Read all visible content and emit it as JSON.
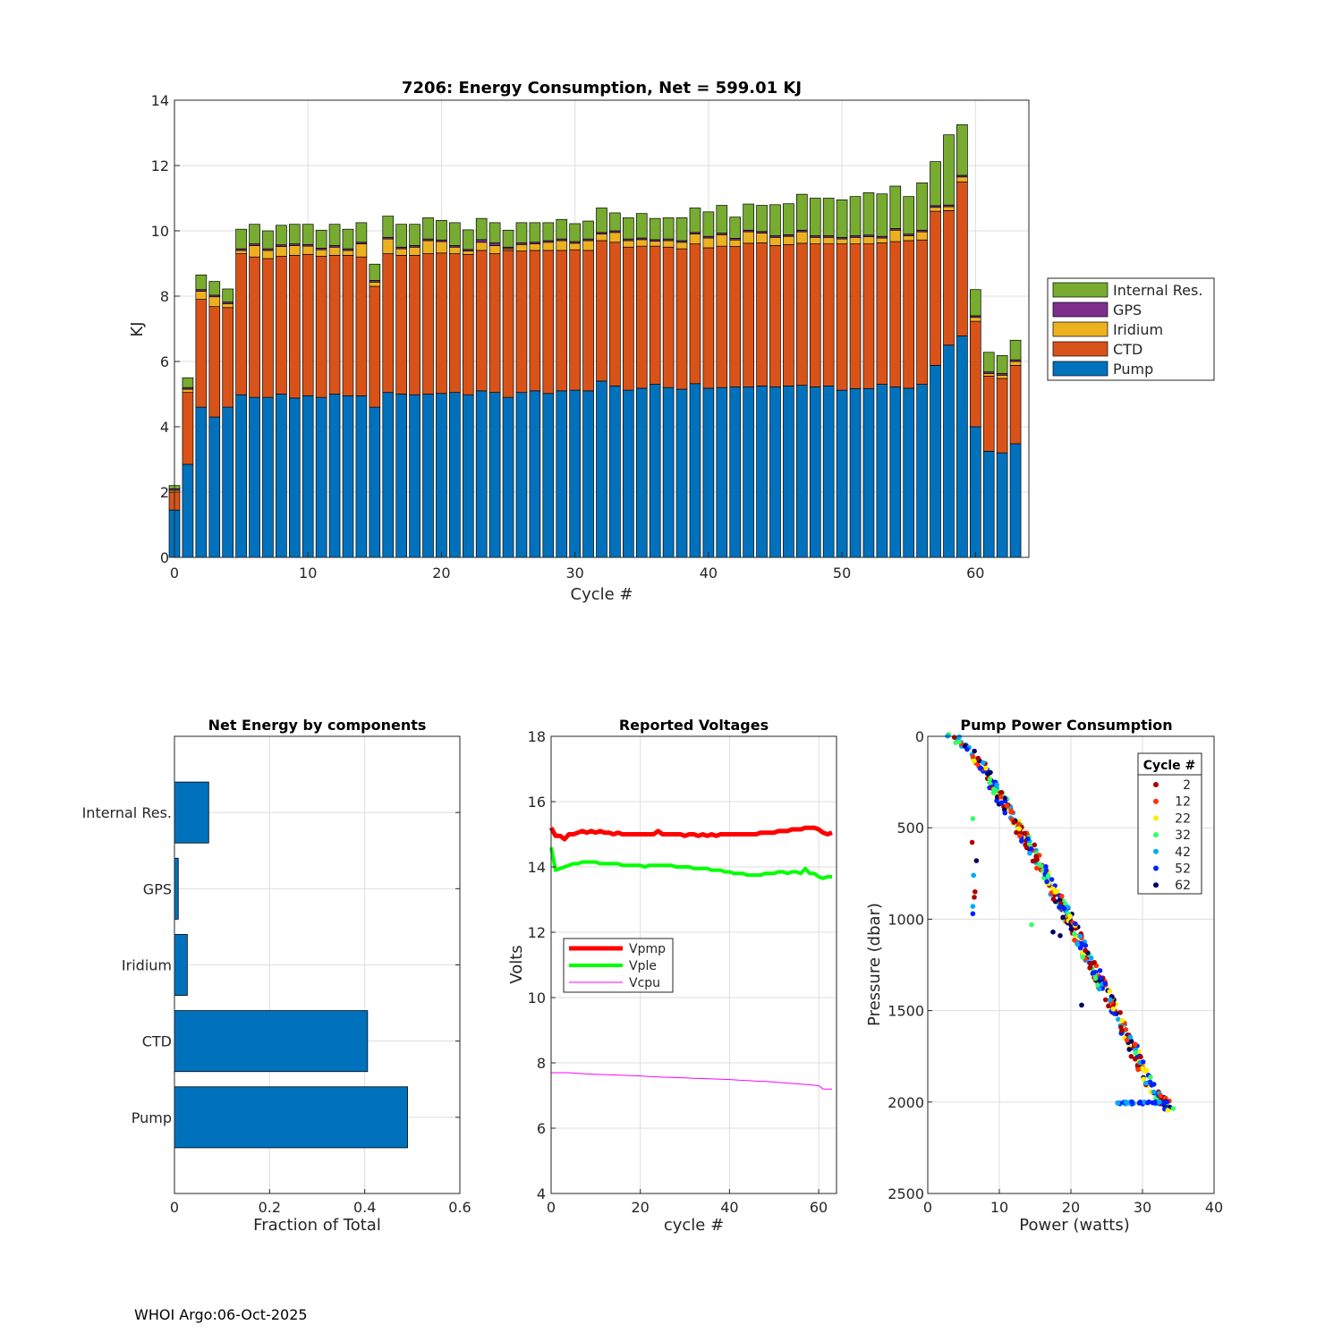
{
  "footer": "WHOI Argo:06-Oct-2025",
  "colors": {
    "pump": "#0072bd",
    "ctd": "#d95319",
    "iridium": "#edb120",
    "gps": "#7e2f8e",
    "internal": "#77ac30",
    "vpmp": "#ff0000",
    "vple": "#00ff00",
    "vcpu": "#ff00ff"
  },
  "chart_data": [
    {
      "id": "energy",
      "type": "bar",
      "stacked": true,
      "title": "7206: Energy Consumption,  Net = 599.01 KJ",
      "xlabel": "Cycle #",
      "ylabel": "KJ",
      "xlim": [
        0,
        64
      ],
      "ylim": [
        0,
        14
      ],
      "xticks": [
        0,
        10,
        20,
        30,
        40,
        50,
        60
      ],
      "yticks": [
        0,
        2,
        4,
        6,
        8,
        10,
        12,
        14
      ],
      "grid": true,
      "legend_position": "outside-right",
      "legend": [
        "Internal Res.",
        "GPS",
        "Iridium",
        "CTD",
        "Pump"
      ],
      "cycles": [
        0,
        1,
        2,
        3,
        4,
        5,
        6,
        7,
        8,
        9,
        10,
        11,
        12,
        13,
        14,
        15,
        16,
        17,
        18,
        19,
        20,
        21,
        22,
        23,
        24,
        25,
        26,
        27,
        28,
        29,
        30,
        31,
        32,
        33,
        34,
        35,
        36,
        37,
        38,
        39,
        40,
        41,
        42,
        43,
        44,
        45,
        46,
        47,
        48,
        49,
        50,
        51,
        52,
        53,
        54,
        55,
        56,
        57,
        58,
        59,
        60,
        61,
        62,
        63
      ],
      "series": [
        {
          "name": "Pump",
          "color_key": "pump",
          "values": [
            1.45,
            2.85,
            4.6,
            4.3,
            4.6,
            4.98,
            4.9,
            4.9,
            5.0,
            4.88,
            4.95,
            4.9,
            5.0,
            4.95,
            4.95,
            4.6,
            5.05,
            5.0,
            4.98,
            5.0,
            5.02,
            5.05,
            4.98,
            5.1,
            5.05,
            4.9,
            5.05,
            5.1,
            5.02,
            5.1,
            5.12,
            5.1,
            5.4,
            5.25,
            5.12,
            5.18,
            5.3,
            5.2,
            5.15,
            5.32,
            5.18,
            5.2,
            5.22,
            5.22,
            5.25,
            5.22,
            5.25,
            5.27,
            5.22,
            5.25,
            5.12,
            5.17,
            5.17,
            5.3,
            5.22,
            5.18,
            5.3,
            5.88,
            6.5,
            6.78,
            4.0,
            3.25,
            3.2,
            3.48
          ]
        },
        {
          "name": "CTD",
          "color_key": "ctd",
          "values": [
            0.55,
            2.2,
            3.3,
            3.38,
            3.05,
            4.32,
            4.3,
            4.25,
            4.22,
            4.37,
            4.33,
            4.32,
            4.25,
            4.3,
            4.25,
            3.7,
            4.25,
            4.25,
            4.27,
            4.3,
            4.3,
            4.25,
            4.3,
            4.3,
            4.25,
            4.5,
            4.33,
            4.3,
            4.38,
            4.3,
            4.3,
            4.3,
            4.3,
            4.4,
            4.38,
            4.35,
            4.23,
            4.3,
            4.3,
            4.28,
            4.3,
            4.33,
            4.3,
            4.4,
            4.38,
            4.33,
            4.33,
            4.35,
            4.38,
            4.35,
            4.48,
            4.43,
            4.43,
            4.33,
            4.45,
            4.52,
            4.42,
            4.72,
            4.12,
            4.72,
            3.23,
            2.3,
            2.28,
            2.4
          ]
        },
        {
          "name": "Iridium",
          "color_key": "iridium",
          "values": [
            0.05,
            0.1,
            0.25,
            0.3,
            0.12,
            0.1,
            0.35,
            0.25,
            0.3,
            0.3,
            0.25,
            0.2,
            0.25,
            0.15,
            0.4,
            0.13,
            0.45,
            0.2,
            0.25,
            0.4,
            0.35,
            0.2,
            0.1,
            0.25,
            0.25,
            0.05,
            0.2,
            0.2,
            0.25,
            0.3,
            0.2,
            0.3,
            0.2,
            0.3,
            0.2,
            0.2,
            0.15,
            0.2,
            0.2,
            0.3,
            0.3,
            0.35,
            0.2,
            0.35,
            0.3,
            0.25,
            0.25,
            0.35,
            0.2,
            0.2,
            0.15,
            0.2,
            0.22,
            0.15,
            0.35,
            0.15,
            0.25,
            0.12,
            0.12,
            0.15,
            0.12,
            0.08,
            0.1,
            0.12
          ]
        },
        {
          "name": "GPS",
          "color_key": "gps",
          "values": [
            0.05,
            0.05,
            0.05,
            0.05,
            0.05,
            0.05,
            0.05,
            0.05,
            0.05,
            0.05,
            0.05,
            0.05,
            0.05,
            0.05,
            0.05,
            0.05,
            0.05,
            0.05,
            0.05,
            0.05,
            0.05,
            0.05,
            0.05,
            0.08,
            0.08,
            0.05,
            0.05,
            0.05,
            0.05,
            0.05,
            0.05,
            0.05,
            0.05,
            0.05,
            0.05,
            0.05,
            0.05,
            0.05,
            0.05,
            0.05,
            0.05,
            0.05,
            0.05,
            0.05,
            0.05,
            0.05,
            0.05,
            0.05,
            0.05,
            0.05,
            0.05,
            0.05,
            0.05,
            0.05,
            0.05,
            0.05,
            0.05,
            0.05,
            0.05,
            0.05,
            0.05,
            0.05,
            0.05,
            0.05
          ]
        },
        {
          "name": "Internal Res.",
          "color_key": "internal",
          "values": [
            0.1,
            0.3,
            0.45,
            0.42,
            0.4,
            0.6,
            0.6,
            0.55,
            0.6,
            0.6,
            0.62,
            0.55,
            0.65,
            0.6,
            0.6,
            0.5,
            0.65,
            0.7,
            0.65,
            0.65,
            0.6,
            0.7,
            0.6,
            0.65,
            0.62,
            0.52,
            0.62,
            0.6,
            0.55,
            0.6,
            0.55,
            0.55,
            0.75,
            0.55,
            0.65,
            0.75,
            0.65,
            0.65,
            0.7,
            0.75,
            0.75,
            0.85,
            0.65,
            0.8,
            0.8,
            0.95,
            0.95,
            1.1,
            1.15,
            1.15,
            1.15,
            1.2,
            1.3,
            1.3,
            1.3,
            1.15,
            1.45,
            1.35,
            2.15,
            1.55,
            0.8,
            0.6,
            0.55,
            0.6
          ]
        }
      ]
    },
    {
      "id": "components",
      "type": "bar",
      "orientation": "horizontal",
      "title": "Net Energy by components",
      "xlabel": "Fraction of Total",
      "xlim": [
        0,
        0.6
      ],
      "xticks": [
        0,
        0.2,
        0.4,
        0.6
      ],
      "xtick_labels": [
        "0",
        "0.2",
        "0.4",
        "0.6"
      ],
      "grid": true,
      "categories": [
        "Internal Res.",
        "GPS",
        "Iridium",
        "CTD",
        "Pump"
      ],
      "values": [
        0.072,
        0.008,
        0.027,
        0.406,
        0.49
      ],
      "color_key": "pump"
    },
    {
      "id": "voltages",
      "type": "line",
      "title": "Reported Voltages",
      "xlabel": "cycle #",
      "ylabel": "Volts",
      "xlim": [
        0,
        64
      ],
      "ylim": [
        4,
        18
      ],
      "xticks": [
        0,
        20,
        40,
        60
      ],
      "yticks": [
        4,
        6,
        8,
        10,
        12,
        14,
        16,
        18
      ],
      "grid": true,
      "legend_position": "center-left",
      "series": [
        {
          "name": "Vpmp",
          "color_key": "vpmp",
          "width": 5,
          "x": [
            0,
            1,
            2,
            3,
            4,
            5,
            6,
            7,
            8,
            9,
            10,
            11,
            12,
            13,
            14,
            15,
            16,
            17,
            18,
            19,
            20,
            21,
            22,
            23,
            24,
            25,
            26,
            27,
            28,
            29,
            30,
            31,
            32,
            33,
            34,
            35,
            36,
            37,
            38,
            39,
            40,
            41,
            42,
            43,
            44,
            45,
            46,
            47,
            48,
            49,
            50,
            51,
            52,
            53,
            54,
            55,
            56,
            57,
            58,
            59,
            60,
            61,
            62,
            63
          ],
          "y": [
            15.2,
            14.95,
            14.95,
            14.85,
            15.0,
            15.0,
            15.05,
            15.1,
            15.05,
            15.1,
            15.05,
            15.1,
            15.05,
            15.05,
            15.0,
            15.05,
            15.0,
            15.0,
            15.0,
            15.0,
            15.0,
            15.0,
            15.0,
            15.0,
            15.1,
            15.0,
            15.0,
            15.0,
            15.0,
            15.0,
            14.95,
            15.0,
            15.0,
            14.95,
            15.0,
            14.95,
            15.0,
            14.95,
            15.0,
            15.0,
            15.0,
            15.0,
            15.0,
            15.0,
            15.0,
            15.0,
            15.0,
            15.05,
            15.05,
            15.05,
            15.05,
            15.1,
            15.1,
            15.1,
            15.15,
            15.15,
            15.15,
            15.2,
            15.2,
            15.2,
            15.15,
            15.05,
            15.0,
            15.05
          ]
        },
        {
          "name": "Vple",
          "color_key": "vple",
          "width": 4,
          "x": [
            0,
            1,
            2,
            3,
            4,
            5,
            6,
            7,
            8,
            9,
            10,
            11,
            12,
            13,
            14,
            15,
            16,
            17,
            18,
            19,
            20,
            21,
            22,
            23,
            24,
            25,
            26,
            27,
            28,
            29,
            30,
            31,
            32,
            33,
            34,
            35,
            36,
            37,
            38,
            39,
            40,
            41,
            42,
            43,
            44,
            45,
            46,
            47,
            48,
            49,
            50,
            51,
            52,
            53,
            54,
            55,
            56,
            57,
            58,
            59,
            60,
            61,
            62,
            63
          ],
          "y": [
            14.6,
            13.9,
            13.95,
            14.0,
            14.05,
            14.1,
            14.1,
            14.15,
            14.15,
            14.15,
            14.15,
            14.1,
            14.1,
            14.1,
            14.1,
            14.1,
            14.05,
            14.05,
            14.05,
            14.05,
            14.05,
            14.0,
            14.05,
            14.05,
            14.05,
            14.05,
            14.05,
            14.05,
            14.0,
            14.0,
            14.0,
            14.0,
            13.95,
            13.95,
            13.95,
            13.95,
            13.9,
            13.9,
            13.9,
            13.85,
            13.85,
            13.8,
            13.8,
            13.8,
            13.75,
            13.75,
            13.75,
            13.75,
            13.8,
            13.8,
            13.8,
            13.85,
            13.85,
            13.8,
            13.85,
            13.85,
            13.8,
            13.95,
            13.8,
            13.8,
            13.7,
            13.65,
            13.7,
            13.7
          ]
        },
        {
          "name": "Vcpu",
          "color_key": "vcpu",
          "width": 1,
          "x": [
            0,
            2,
            4,
            6,
            8,
            10,
            12,
            14,
            16,
            18,
            20,
            22,
            24,
            26,
            28,
            30,
            32,
            34,
            36,
            38,
            40,
            42,
            44,
            46,
            48,
            50,
            52,
            54,
            56,
            58,
            60,
            61,
            62,
            63
          ],
          "y": [
            7.7,
            7.7,
            7.7,
            7.68,
            7.66,
            7.65,
            7.64,
            7.63,
            7.62,
            7.61,
            7.6,
            7.58,
            7.57,
            7.56,
            7.55,
            7.54,
            7.53,
            7.52,
            7.51,
            7.5,
            7.49,
            7.47,
            7.46,
            7.44,
            7.43,
            7.41,
            7.39,
            7.37,
            7.35,
            7.33,
            7.3,
            7.2,
            7.2,
            7.2
          ]
        }
      ]
    },
    {
      "id": "pump_power",
      "type": "scatter",
      "title": "Pump Power Consumption",
      "xlabel": "Power (watts)",
      "ylabel": "Pressure (dbar)",
      "xlim": [
        0,
        40
      ],
      "ylim": [
        2500,
        0
      ],
      "y_reversed": true,
      "xticks": [
        0,
        10,
        20,
        30,
        40
      ],
      "yticks": [
        0,
        500,
        1000,
        1500,
        2000,
        2500
      ],
      "grid": true,
      "legend_title": "Cycle #",
      "legend_position": "top-right",
      "legend": [
        "2",
        "12",
        "22",
        "32",
        "42",
        "52",
        "62"
      ],
      "series_colors": [
        "#aa0000",
        "#ff3300",
        "#ffee00",
        "#33ff66",
        "#00aaff",
        "#0022ff",
        "#000066"
      ],
      "main_trend": {
        "x": [
          2.9,
          4.0,
          5.5,
          7.0,
          8.5,
          10.0,
          12.0,
          14.0,
          16.0,
          18.0,
          20.0,
          22.0,
          24.0,
          26.0,
          28.0,
          30.0,
          31.5,
          33.0,
          34.0
        ],
        "y": [
          0,
          10,
          60,
          130,
          220,
          320,
          460,
          590,
          720,
          870,
          1020,
          1180,
          1330,
          1480,
          1650,
          1820,
          1930,
          2000,
          2050
        ]
      },
      "outliers": [
        {
          "x": 6.3,
          "y": 450,
          "series": 3
        },
        {
          "x": 6.2,
          "y": 580,
          "series": 0
        },
        {
          "x": 6.8,
          "y": 680,
          "series": 6
        },
        {
          "x": 6.4,
          "y": 760,
          "series": 4
        },
        {
          "x": 6.6,
          "y": 850,
          "series": 0
        },
        {
          "x": 6.5,
          "y": 880,
          "series": 0
        },
        {
          "x": 6.3,
          "y": 930,
          "series": 4
        },
        {
          "x": 6.3,
          "y": 970,
          "series": 5
        },
        {
          "x": 14.5,
          "y": 1030,
          "series": 3
        },
        {
          "x": 21.5,
          "y": 1470,
          "series": 6
        },
        {
          "x": 17.5,
          "y": 1070,
          "series": 6
        },
        {
          "x": 18.5,
          "y": 1090,
          "series": 6
        }
      ],
      "bottom_row": {
        "x_start": 26.5,
        "x_end": 33.5,
        "y": 2005
      }
    }
  ]
}
